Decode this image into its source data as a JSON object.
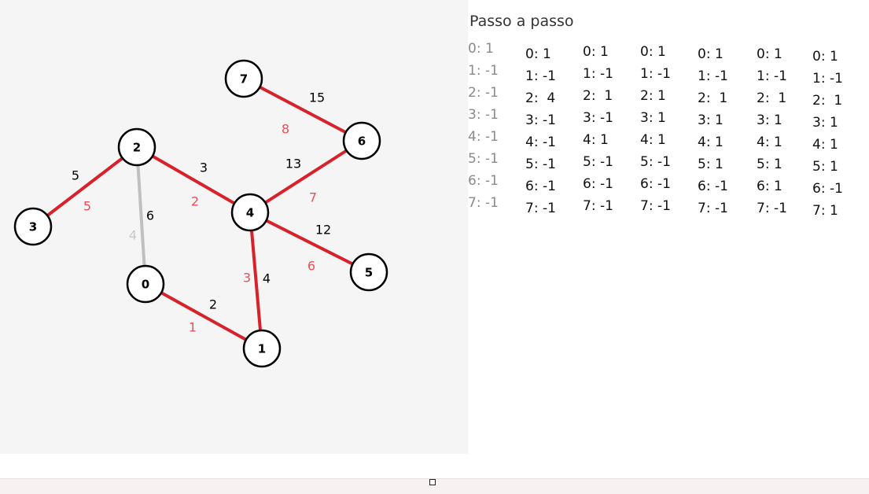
{
  "graph": {
    "nodes": [
      "0",
      "1",
      "2",
      "3",
      "4",
      "5",
      "6",
      "7"
    ],
    "edges": [
      {
        "from": "7",
        "to": "6",
        "weight": "15",
        "order": "8",
        "state": "selected"
      },
      {
        "from": "2",
        "to": "3",
        "weight": "5",
        "order": "5",
        "state": "selected"
      },
      {
        "from": "2",
        "to": "4",
        "weight": "3",
        "order": "2",
        "state": "selected"
      },
      {
        "from": "2",
        "to": "0",
        "weight": "6",
        "order": "4",
        "state": "rejected"
      },
      {
        "from": "6",
        "to": "4",
        "weight": "13",
        "order": "7",
        "state": "selected"
      },
      {
        "from": "4",
        "to": "5",
        "weight": "12",
        "order": "6",
        "state": "selected"
      },
      {
        "from": "4",
        "to": "1",
        "weight": "4",
        "order": "3",
        "state": "selected"
      },
      {
        "from": "0",
        "to": "1",
        "weight": "2",
        "order": "1",
        "state": "selected"
      }
    ],
    "colors": {
      "selected_edge": "#d8212b",
      "rejected_edge": "#c0c0c0",
      "order_selected": "#e8505a",
      "order_rejected": "#c8c8c8",
      "weight": "#000000"
    }
  },
  "steps": {
    "title": "Passo a passo",
    "columns": [
      [
        "0: 1",
        "1: -1",
        "2: -1",
        "3: -1",
        "4: -1",
        "5: -1",
        "6: -1",
        "7: -1"
      ],
      [
        "0: 1",
        "1: -1",
        "2:  4",
        "3: -1",
        "4: -1",
        "5: -1",
        "6: -1",
        "7: -1"
      ],
      [
        "0: 1",
        "1: -1",
        "2:  1",
        "3: -1",
        "4: 1",
        "5: -1",
        "6: -1",
        "7: -1"
      ],
      [
        "0: 1",
        "1: -1",
        "2: 1",
        "3: 1",
        "4: 1",
        "5: -1",
        "6: -1",
        "7: -1"
      ],
      [
        "0: 1",
        "1: -1",
        "2:  1",
        "3: 1",
        "4: 1",
        "5: 1",
        "6: -1",
        "7: -1"
      ],
      [
        "0: 1",
        "1: -1",
        "2:  1",
        "3: 1",
        "4: 1",
        "5: 1",
        "6: 1",
        "7: -1"
      ],
      [
        "0: 1",
        "1: -1",
        "2:  1",
        "3: 1",
        "4: 1",
        "5: 1",
        "6: -1",
        "7: 1"
      ]
    ]
  }
}
